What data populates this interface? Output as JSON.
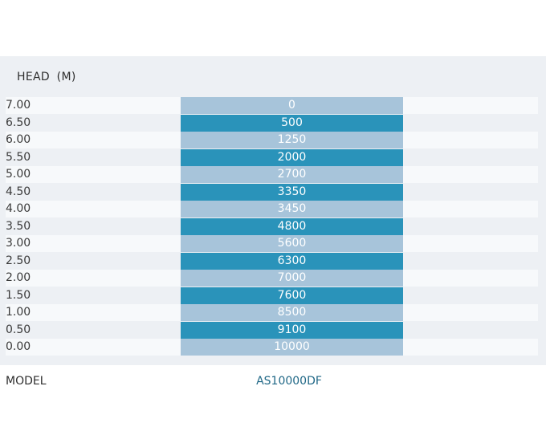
{
  "header": {
    "label": "HEAD (M)"
  },
  "rows": [
    {
      "head": "7.00",
      "flow": "0"
    },
    {
      "head": "6.50",
      "flow": "500"
    },
    {
      "head": "6.00",
      "flow": "1250"
    },
    {
      "head": "5.50",
      "flow": "2000"
    },
    {
      "head": "5.00",
      "flow": "2700"
    },
    {
      "head": "4.50",
      "flow": "3350"
    },
    {
      "head": "4.00",
      "flow": "3450"
    },
    {
      "head": "3.50",
      "flow": "4800"
    },
    {
      "head": "3.00",
      "flow": "5600"
    },
    {
      "head": "2.50",
      "flow": "6300"
    },
    {
      "head": "2.00",
      "flow": "7000"
    },
    {
      "head": "1.50",
      "flow": "7600"
    },
    {
      "head": "1.00",
      "flow": "8500"
    },
    {
      "head": "0.50",
      "flow": "9100"
    },
    {
      "head": "0.00",
      "flow": "10000"
    }
  ],
  "model": {
    "label": "MODEL",
    "value": "AS10000DF"
  },
  "colors": {
    "cell_light": "#a7c4da",
    "cell_dark": "#2a93ba",
    "model_value": "#1f6786",
    "panel_bg": "#edf0f4"
  }
}
